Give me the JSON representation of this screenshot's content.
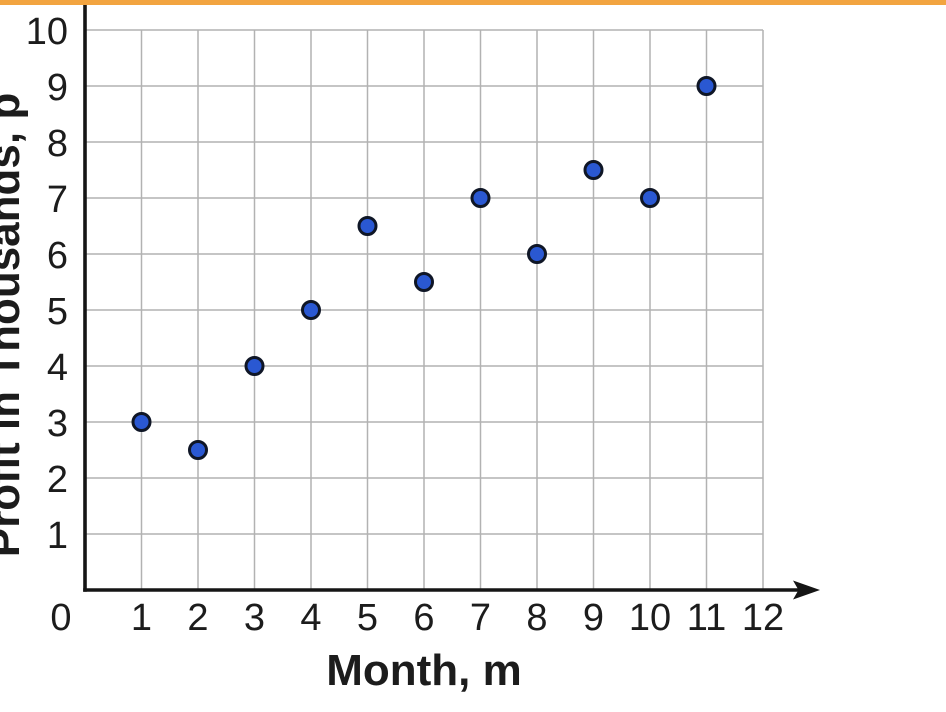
{
  "page": {
    "background": "#ffffff",
    "top_bar_color": "#F2A440"
  },
  "chart_data": {
    "type": "scatter",
    "title": "",
    "xlabel": "Month, m",
    "ylabel": "Profit in Thousands, p",
    "x": [
      1,
      2,
      3,
      4,
      5,
      6,
      7,
      8,
      9,
      10,
      11
    ],
    "y": [
      3,
      2.5,
      4,
      5,
      6.5,
      5.5,
      7,
      6,
      7.5,
      7,
      9
    ],
    "xlim": [
      0,
      12
    ],
    "ylim": [
      0,
      10
    ],
    "x_ticks": [
      0,
      1,
      2,
      3,
      4,
      5,
      6,
      7,
      8,
      9,
      10,
      11,
      12
    ],
    "y_ticks": [
      1,
      2,
      3,
      4,
      5,
      6,
      7,
      8,
      9,
      10
    ],
    "grid": true,
    "legend": "none",
    "marker_fill": "#2A58D2",
    "marker_stroke": "#0F1626",
    "grid_color": "#B2B2B2",
    "axis_color": "#151515",
    "tick_label_color": "#1c1c1c"
  }
}
